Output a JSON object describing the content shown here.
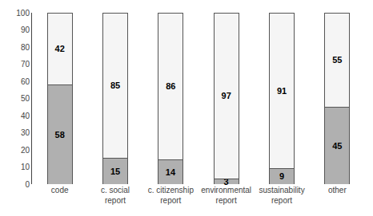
{
  "chart_data": {
    "type": "bar",
    "stacked": true,
    "categories": [
      "code",
      "c. social\nreport",
      "c. citizenship\nreport",
      "environmental\nreport",
      "sustainability\nreport",
      "other"
    ],
    "series": [
      {
        "color": "#b0b0b0",
        "values": [
          58,
          15,
          14,
          3,
          9,
          45
        ]
      },
      {
        "color": "#f5f5f5",
        "values": [
          42,
          85,
          86,
          97,
          91,
          55
        ]
      }
    ],
    "ylim": [
      0,
      100
    ],
    "yticks": [
      0,
      10,
      20,
      30,
      40,
      50,
      60,
      70,
      80,
      90,
      100
    ],
    "data_labels": true,
    "grid": false
  }
}
